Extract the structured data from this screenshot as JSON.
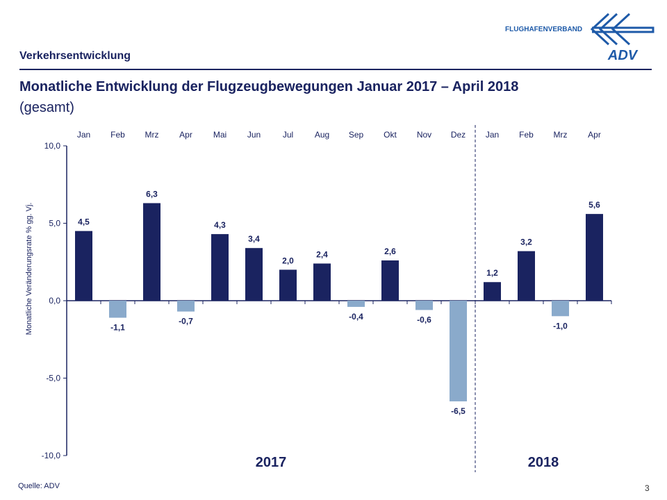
{
  "header": {
    "section": "Verkehrsentwicklung",
    "logo_text": "FLUGHAFENVERBAND",
    "logo_mark": "ADV"
  },
  "title": "Monatliche Entwicklung der Flugzeugbewegungen Januar 2017 – April 2018",
  "subtitle": "(gesamt)",
  "footer": {
    "source": "Quelle: ADV",
    "page": "3"
  },
  "chart_data": {
    "type": "bar",
    "categories": [
      "Jan",
      "Feb",
      "Mrz",
      "Apr",
      "Mai",
      "Jun",
      "Jul",
      "Aug",
      "Sep",
      "Okt",
      "Nov",
      "Dez",
      "Jan",
      "Feb",
      "Mrz",
      "Apr"
    ],
    "values": [
      4.5,
      -1.1,
      6.3,
      -0.7,
      4.3,
      3.4,
      2.0,
      2.4,
      -0.4,
      2.6,
      -0.6,
      -6.5,
      1.2,
      3.2,
      -1.0,
      5.6
    ],
    "data_labels": [
      "4,5",
      "-1,1",
      "6,3",
      "-0,7",
      "4,3",
      "3,4",
      "2,0",
      "2,4",
      "-0,4",
      "2,6",
      "-0,6",
      "-6,5",
      "1,2",
      "3,2",
      "-1,0",
      "5,6"
    ],
    "year_groups": [
      {
        "label": "2017",
        "months": 12
      },
      {
        "label": "2018",
        "months": 4
      }
    ],
    "ylabel": "Monatliche Veränderungsrate % gg. Vj.",
    "ylim": [
      -10,
      10
    ],
    "yticks": [
      "10,0",
      "5,0",
      "0,0",
      "-5,0",
      "-10,0"
    ],
    "ytick_values": [
      10,
      5,
      0,
      -5,
      -10
    ],
    "grid": false,
    "colors": {
      "positive": "#1a2360",
      "negative": "#8aaacb",
      "text": "#1a2360"
    }
  }
}
